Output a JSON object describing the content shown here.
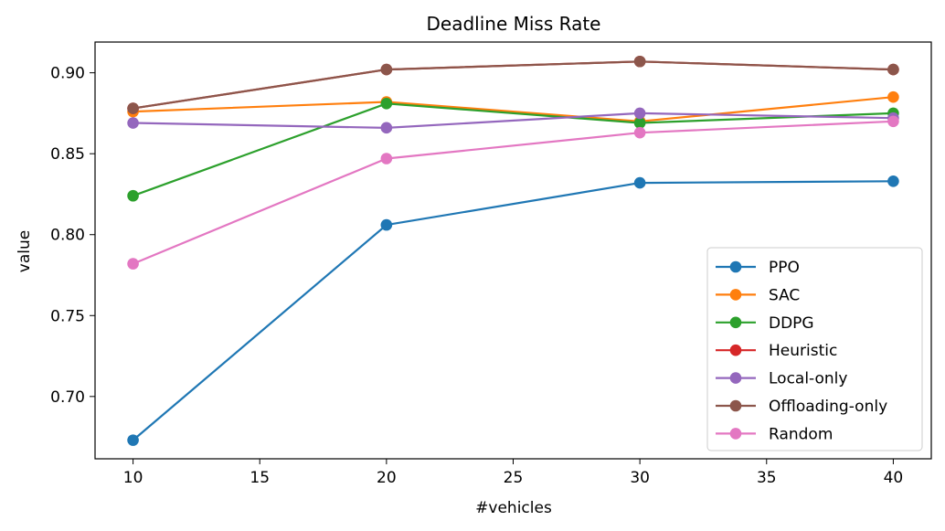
{
  "chart_data": {
    "type": "line",
    "title": "Deadline Miss Rate",
    "xlabel": "#vehicles",
    "ylabel": "value",
    "x": [
      10,
      20,
      30,
      40
    ],
    "xlim": [
      8.5,
      41.5
    ],
    "ylim": [
      0.6615,
      0.919
    ],
    "xticks": [
      10,
      15,
      20,
      25,
      30,
      35,
      40
    ],
    "yticks": [
      0.7,
      0.75,
      0.8,
      0.85,
      0.9
    ],
    "ytick_labels": [
      "0.70",
      "0.75",
      "0.80",
      "0.85",
      "0.90"
    ],
    "grid": false,
    "legend_position": "lower-right",
    "series": [
      {
        "name": "PPO",
        "color": "#1f77b4",
        "values": [
          0.673,
          0.806,
          0.832,
          0.833
        ]
      },
      {
        "name": "SAC",
        "color": "#ff7f0e",
        "values": [
          0.876,
          0.882,
          0.87,
          0.885
        ]
      },
      {
        "name": "DDPG",
        "color": "#2ca02c",
        "values": [
          0.824,
          0.881,
          0.869,
          0.875
        ]
      },
      {
        "name": "Heuristic",
        "color": "#d62728",
        "values": [
          0.878,
          0.902,
          0.907,
          0.902
        ]
      },
      {
        "name": "Local-only",
        "color": "#9467bd",
        "values": [
          0.869,
          0.866,
          0.875,
          0.872
        ]
      },
      {
        "name": "Offloading-only",
        "color": "#8c564b",
        "values": [
          0.878,
          0.902,
          0.907,
          0.902
        ]
      },
      {
        "name": "Random",
        "color": "#e377c2",
        "values": [
          0.782,
          0.847,
          0.863,
          0.87
        ]
      }
    ]
  }
}
